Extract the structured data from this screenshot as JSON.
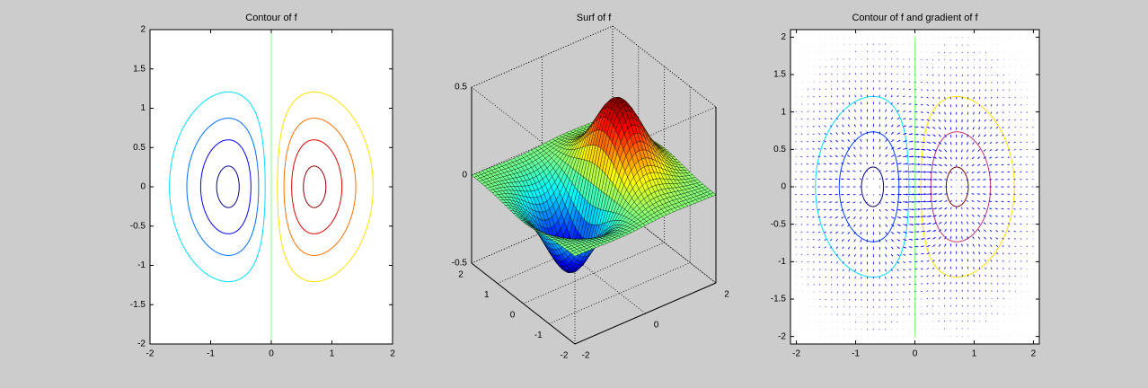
{
  "chart_data": [
    {
      "type": "contour",
      "title": "Contour of f",
      "xlim": [
        -2,
        2
      ],
      "ylim": [
        -2,
        2
      ],
      "xticks": [
        -2,
        -1,
        0,
        1,
        2
      ],
      "yticks": [
        -2,
        -1.5,
        -1,
        -0.5,
        0,
        0.5,
        1,
        1.5,
        2
      ],
      "levels": [
        -0.4,
        -0.3,
        -0.2,
        -0.1,
        0,
        0.1,
        0.2,
        0.3,
        0.4
      ],
      "colors": [
        "#00008f",
        "#0000ff",
        "#0070ff",
        "#00e0ff",
        "#80ff80",
        "#ffe000",
        "#ff7000",
        "#e00000",
        "#8f0000"
      ]
    },
    {
      "type": "surface",
      "title": "Surf of f",
      "xlim": [
        -2,
        2
      ],
      "ylim": [
        -2,
        2
      ],
      "zlim": [
        -0.5,
        0.5
      ],
      "xticks": [
        -2,
        0,
        2
      ],
      "yticks": [
        -2,
        -1,
        0,
        1,
        2
      ],
      "zticks": [
        -0.5,
        0,
        0.5
      ],
      "grid": true,
      "colormap": "jet"
    },
    {
      "type": "quiver",
      "title": "Contour of f and gradient of f",
      "xlim": [
        -2.1,
        2.1
      ],
      "ylim": [
        -2.1,
        2.1
      ],
      "xticks": [
        -2,
        -1,
        0,
        1,
        2
      ],
      "yticks": [
        -2,
        -1.5,
        -1,
        -0.5,
        0,
        0.5,
        1,
        1.5,
        2
      ],
      "levels": [
        -0.4,
        -0.25,
        -0.1,
        0,
        0.1,
        0.25,
        0.4
      ],
      "colors": [
        "#000080",
        "#0040ff",
        "#00e0ff",
        "#80ff80",
        "#ffe000",
        "#c03070",
        "#800000"
      ],
      "color": "#0000ff"
    }
  ]
}
